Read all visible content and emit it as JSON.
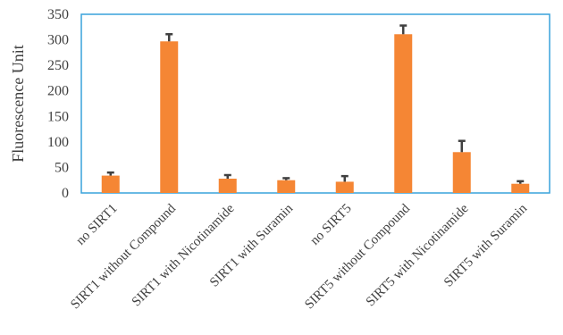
{
  "chart_data": {
    "type": "bar",
    "title": "",
    "xlabel": "",
    "ylabel": "Fluorescence Unit",
    "ylim": [
      0,
      350
    ],
    "yticks": [
      0,
      50,
      100,
      150,
      200,
      250,
      300,
      350
    ],
    "grid": false,
    "categories": [
      "no SIRT1",
      "SIRT1 without Compound",
      "SIRT1 with Nicotinamide",
      "SIRT1 with Suramin",
      "no SIRT5",
      "SIRT5 without Compound",
      "SIRT5 with Nicotinamide",
      "SIRT5 with Suramin"
    ],
    "values": [
      34,
      297,
      28,
      25,
      22,
      311,
      80,
      18
    ],
    "errors": [
      6,
      14,
      7,
      4,
      11,
      17,
      22,
      5
    ],
    "bar_color": "#F58634",
    "error_color": "#404040",
    "frame_color": "#39A2DB"
  }
}
